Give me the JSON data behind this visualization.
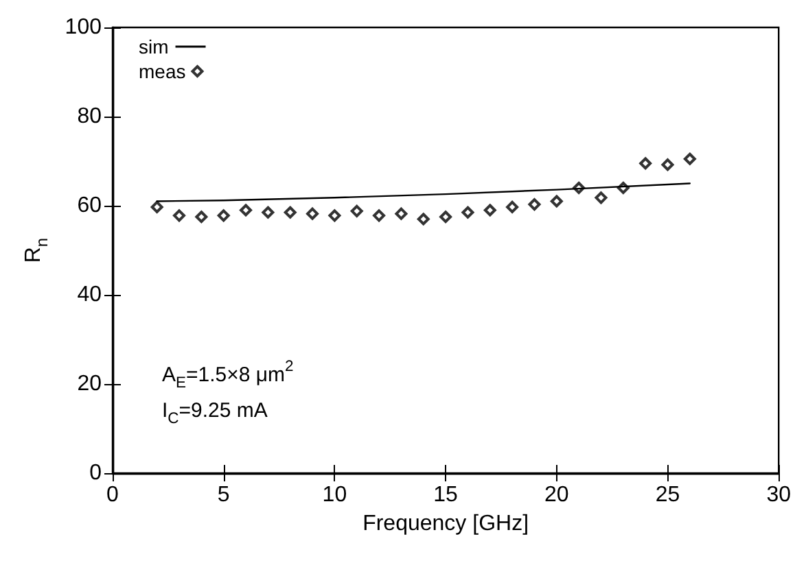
{
  "chart_data": {
    "type": "scatter",
    "xlabel": "Frequency [GHz]",
    "ylabel": "R$_{n}$",
    "xlim": [
      0,
      30
    ],
    "xticks": [
      0,
      5,
      10,
      15,
      20,
      25,
      30
    ],
    "ylim": [
      0,
      100
    ],
    "yticks": [
      0,
      20,
      40,
      60,
      80,
      100
    ],
    "grid": false,
    "legend": "top left",
    "annotations": [
      "A$_{E}$=1.5×8 μm$^{2}$",
      "I$_{C}$=9.25 mA"
    ],
    "series": [
      {
        "name": "sim",
        "type": "line",
        "color": "#000000",
        "marker": "none",
        "line_style": "solid",
        "x": [
          2,
          5,
          10,
          15,
          20,
          26
        ],
        "values": [
          61,
          61.2,
          61.8,
          62.6,
          63.6,
          65
        ]
      },
      {
        "name": "meas",
        "type": "scatter",
        "color": "#000000",
        "marker": "diamond",
        "x": [
          2,
          3,
          4,
          5,
          6,
          7,
          8,
          9,
          10,
          11,
          12,
          13,
          14,
          15,
          16,
          17,
          18,
          19,
          20,
          21,
          22,
          23,
          24,
          25,
          26
        ],
        "values": [
          59.7,
          57.8,
          57.5,
          57.8,
          59,
          58.5,
          58.5,
          58.2,
          57.8,
          58.8,
          57.8,
          58.2,
          57,
          57.5,
          58.5,
          59,
          59.7,
          60.3,
          61,
          64,
          61.8,
          64,
          69.5,
          69.2,
          70.5
        ]
      }
    ]
  }
}
